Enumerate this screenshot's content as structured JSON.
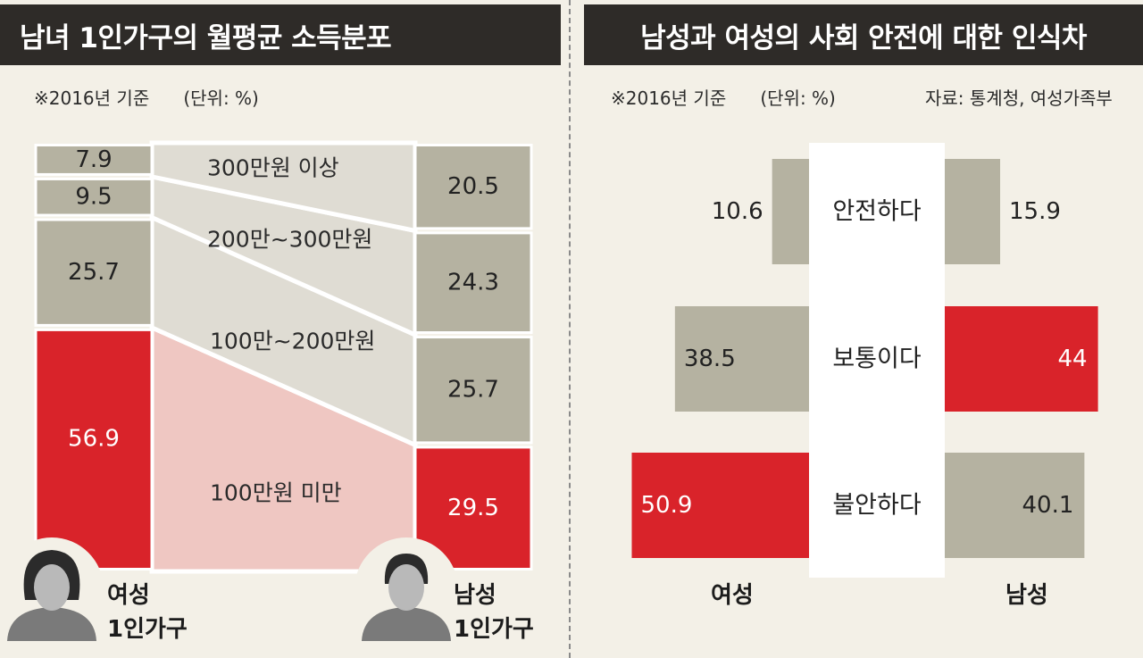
{
  "left": {
    "title": "남녀 1인가구의 월평균 소득분포",
    "note": "※2016년 기준      (단위: %)",
    "chart_data": {
      "type": "bar",
      "stacked": true,
      "unit": "%",
      "categories": [
        "100만원 미만",
        "100만~200만원",
        "200만~300만원",
        "300만원 이상"
      ],
      "series": [
        {
          "name": "여성 1인가구",
          "values": [
            56.9,
            25.7,
            9.5,
            7.9
          ]
        },
        {
          "name": "남성 1인가구",
          "values": [
            29.5,
            25.7,
            24.3,
            20.5
          ]
        }
      ]
    },
    "category_labels": [
      "100만원 미만",
      "100만~200만원",
      "200만~300만원",
      "300만원 이상"
    ],
    "value_labels": {
      "female": [
        "56.9",
        "25.7",
        "9.5",
        "7.9"
      ],
      "male": [
        "29.5",
        "25.7",
        "24.3",
        "20.5"
      ]
    },
    "female_label": [
      "여성",
      "1인가구"
    ],
    "male_label": [
      "남성",
      "1인가구"
    ],
    "colors": {
      "highlight": "#d9232a",
      "neutral": "#b5b2a1",
      "band_highlight": "#efc7c2",
      "band_neutral": "#dfdcd3"
    },
    "icons": [
      "woman-avatar-icon",
      "man-avatar-icon"
    ]
  },
  "right": {
    "title": "남성과 여성의 사회 안전에 대한 인식차",
    "note": "※2016년 기준      (단위: %)",
    "source": "자료: 통계청, 여성가족부",
    "chart_data": {
      "type": "bar",
      "orientation": "horizontal-diverging",
      "unit": "%",
      "categories": [
        "안전하다",
        "보통이다",
        "불안하다"
      ],
      "series": [
        {
          "name": "여성",
          "values": [
            10.6,
            38.5,
            50.9
          ]
        },
        {
          "name": "남성",
          "values": [
            15.9,
            44,
            40.1
          ]
        }
      ]
    },
    "category_labels": [
      "안전하다",
      "보통이다",
      "불안하다"
    ],
    "value_labels": {
      "female": [
        "10.6",
        "38.5",
        "50.9"
      ],
      "male": [
        "15.9",
        "44",
        "40.1"
      ]
    },
    "highlight": {
      "female": [
        false,
        false,
        true
      ],
      "male": [
        false,
        true,
        false
      ]
    },
    "female_label": "여성",
    "male_label": "남성",
    "colors": {
      "highlight": "#d9232a",
      "neutral": "#b5b2a1"
    }
  }
}
